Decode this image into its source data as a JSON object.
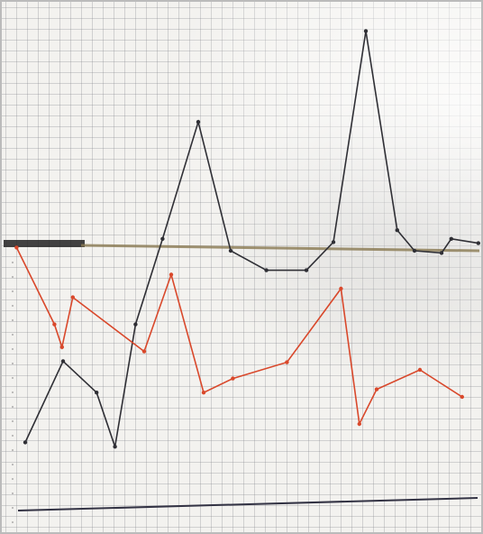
{
  "chart_data": {
    "type": "line",
    "xlim": [
      -1.2,
      42.8
    ],
    "ylim": [
      -2,
      46
    ],
    "series": [
      {
        "color": "#2f2f35",
        "x": [
          0.8,
          4.3,
          7.4,
          9.1,
          11,
          13.5,
          16.8,
          19.8,
          23.1,
          26.8,
          29.3,
          32.3,
          35.2,
          36.8,
          39.3,
          40.2,
          42.7
        ],
        "values": [
          5.8,
          13.3,
          10.4,
          5.4,
          16.7,
          24.6,
          35.4,
          23.5,
          21.7,
          21.7,
          24.3,
          43.8,
          25.4,
          23.5,
          23.3,
          24.6,
          24.2
        ]
      },
      {
        "color": "#d9482b",
        "x": [
          0,
          3.5,
          4.2,
          5.2,
          11.8,
          14.3,
          17.3,
          20,
          25,
          30,
          31.7,
          33.3,
          37.3,
          41.2
        ],
        "values": [
          23.8,
          16.7,
          14.6,
          19.2,
          14.2,
          21.3,
          10.4,
          11.7,
          13.2,
          20,
          7.5,
          10.7,
          12.5,
          10
        ]
      }
    ]
  }
}
